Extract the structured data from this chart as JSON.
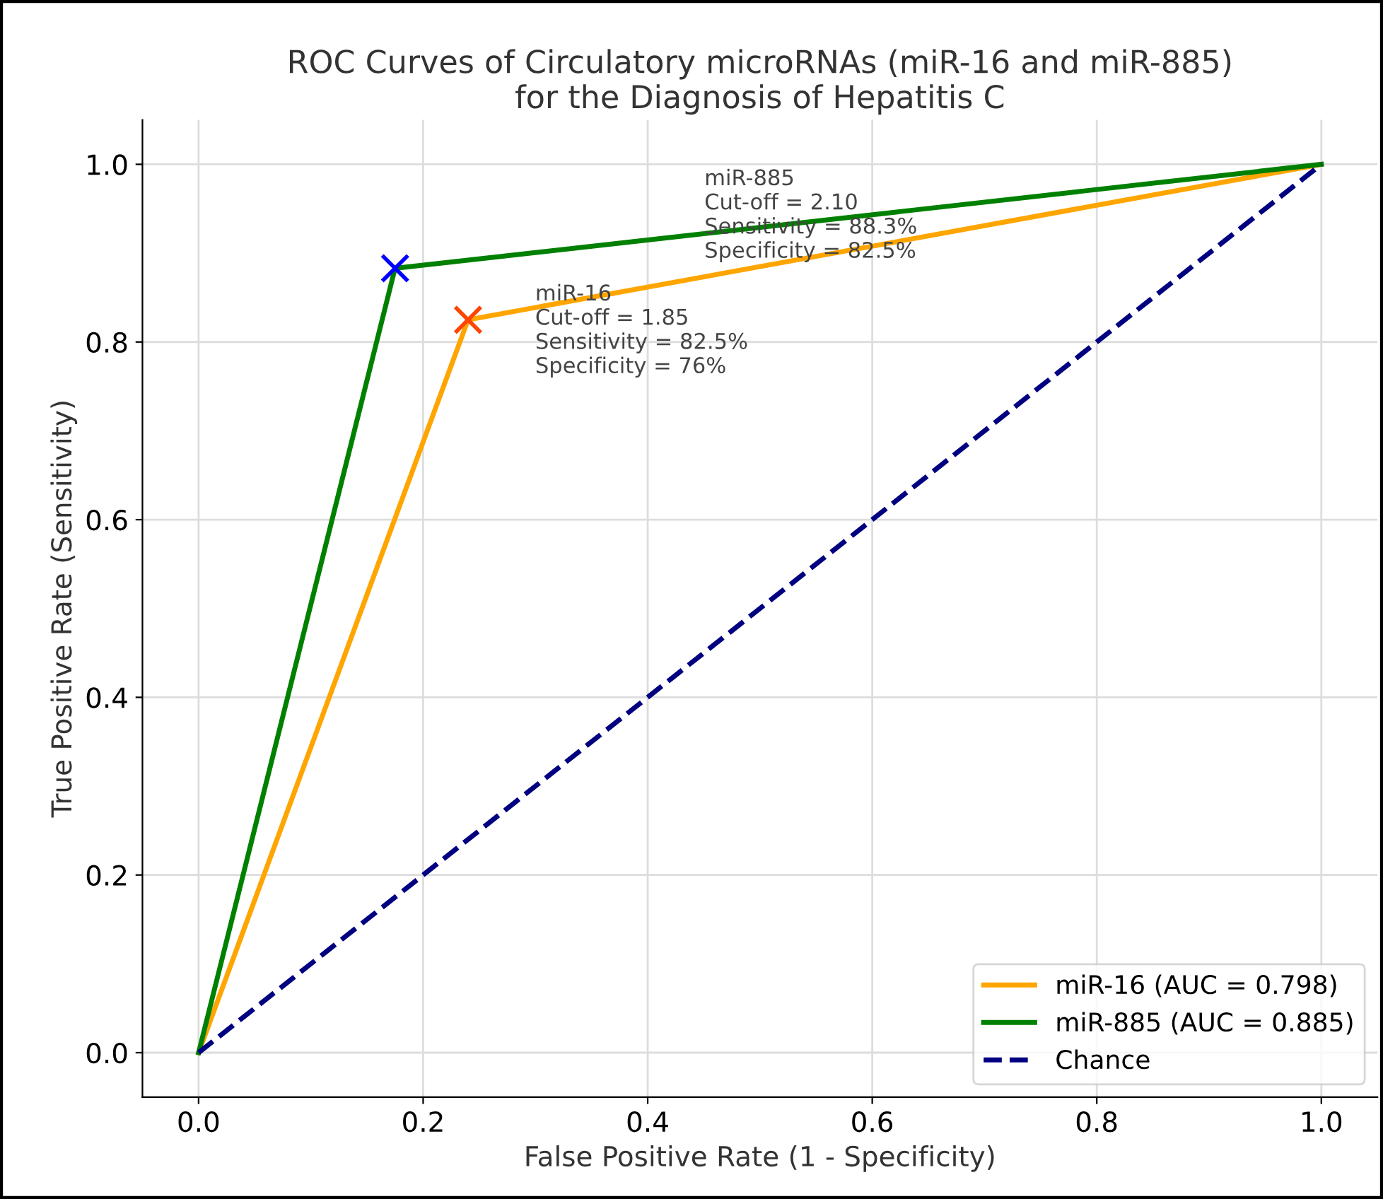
{
  "chart_data": {
    "type": "line",
    "title": "ROC Curves of Circulatory microRNAs (miR-16 and miR-885)\nfor the Diagnosis of Hepatitis C",
    "xlabel": "False Positive Rate (1 - Specificity)",
    "ylabel": "True Positive Rate (Sensitivity)",
    "xlim": [
      -0.05,
      1.05
    ],
    "ylim": [
      -0.05,
      1.05
    ],
    "xticks": [
      {
        "value": 0,
        "label": "0.0"
      },
      0.2,
      0.4,
      0.6,
      0.8,
      {
        "value": 1,
        "label": "1.0"
      }
    ],
    "yticks": [
      {
        "value": 0,
        "label": "0.0"
      },
      0.2,
      0.4,
      0.6,
      0.8,
      {
        "value": 1,
        "label": "1.0"
      }
    ],
    "grid": true,
    "legend": "bottom right",
    "series": [
      {
        "name": "miR-16 (AUC = 0.798)",
        "color": "#ffa500",
        "x": [
          0,
          0.24,
          1
        ],
        "values": [
          0,
          0.825,
          1
        ],
        "line_style": "solid",
        "marker": "none"
      },
      {
        "name": "miR-885 (AUC = 0.885)",
        "color": "#008000",
        "x": [
          0,
          0.175,
          1
        ],
        "values": [
          0,
          0.883,
          1
        ],
        "line_style": "solid",
        "marker": "none"
      },
      {
        "name": "Chance",
        "color": "#000080",
        "x": [
          0,
          1
        ],
        "values": [
          0,
          1
        ],
        "line_style": "dashed",
        "marker": "none"
      },
      {
        "type": "scatter",
        "color": "#ff4500",
        "x": [
          0.24
        ],
        "values": [
          0.825
        ],
        "marker": "cross"
      },
      {
        "type": "scatter",
        "color": "#0000ff",
        "x": [
          0.175
        ],
        "values": [
          0.883
        ],
        "marker": "cross"
      }
    ],
    "annotations": [
      "miR-16\nCut-off = 1.85\nSensitivity = 82.5%\nSpecificity = 76%",
      "miR-885\nCut-off = 2.10\nSensitivity = 88.3%\nSpecificity = 82.5%"
    ]
  }
}
